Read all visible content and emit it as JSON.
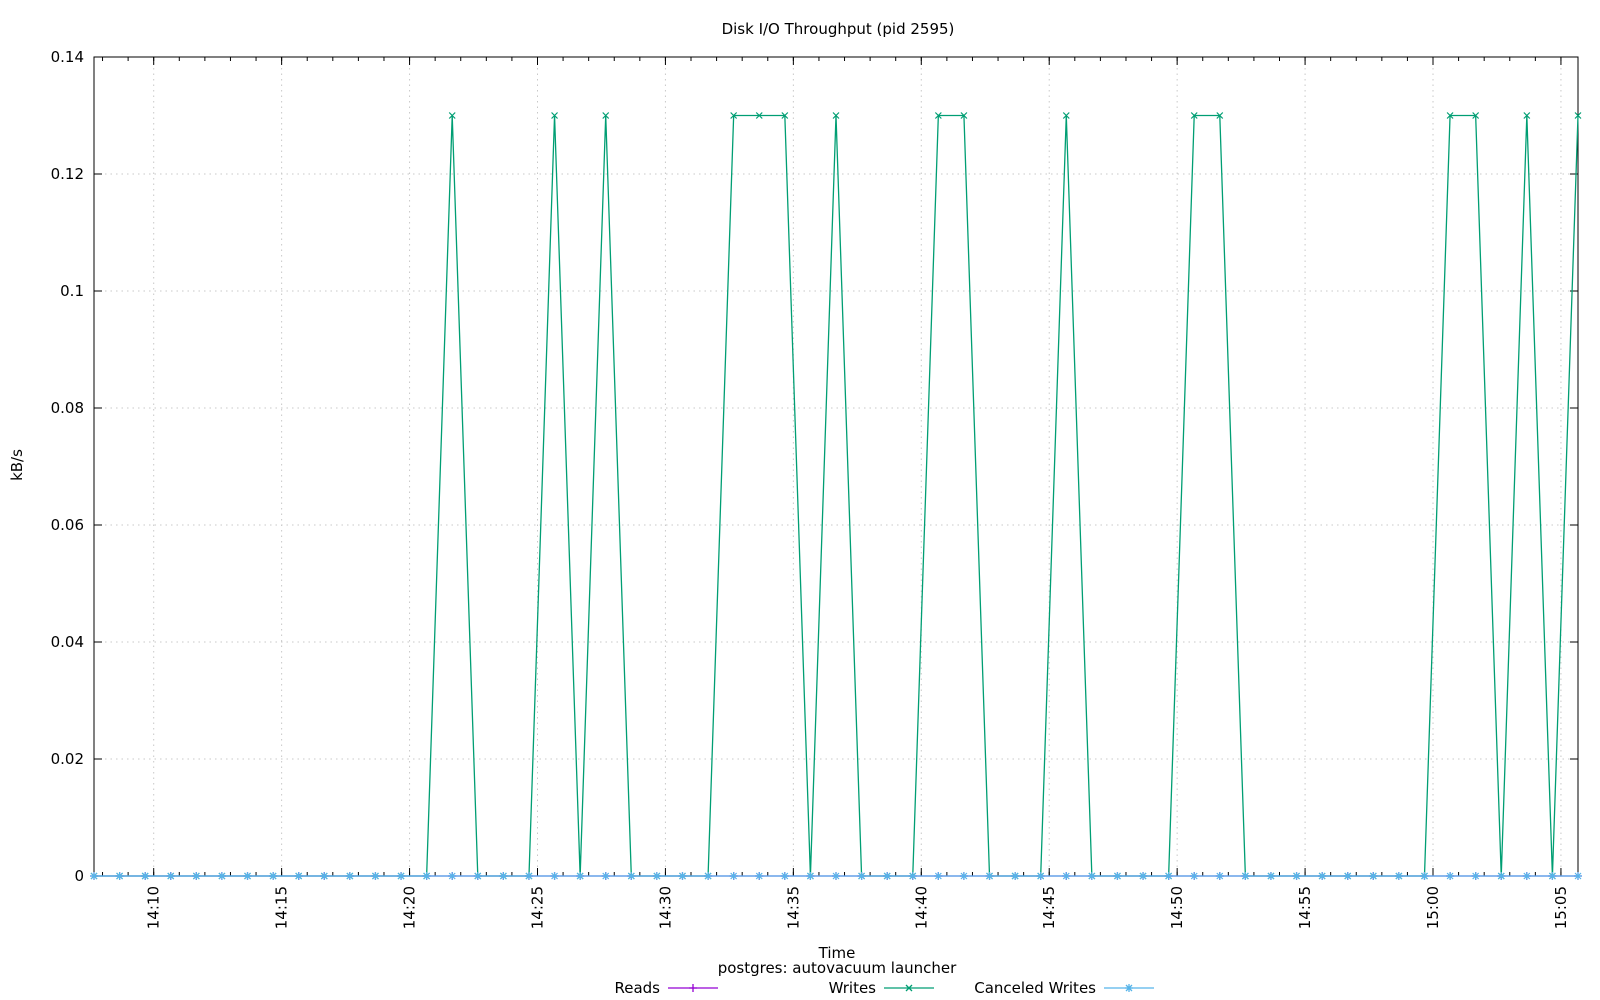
{
  "chart_data": {
    "type": "line",
    "title": "Disk I/O Throughput (pid 2595)",
    "xlabel": "Time",
    "ylabel": "kB/s",
    "subtitle": "postgres: autovacuum launcher",
    "x_range": [
      "14:07:40",
      "15:05:40"
    ],
    "ylim": [
      0,
      0.14
    ],
    "y_ticks": [
      "0",
      "0.02",
      "0.04",
      "0.06",
      "0.08",
      "0.1",
      "0.12",
      "0.14"
    ],
    "x_ticks": [
      "14:10",
      "14:15",
      "14:20",
      "14:25",
      "14:30",
      "14:35",
      "14:40",
      "14:45",
      "14:50",
      "14:55",
      "15:00",
      "15:05"
    ],
    "grid": true,
    "legend_position": "bottom",
    "x": [
      "14:07:40",
      "14:08:40",
      "14:09:40",
      "14:10:40",
      "14:11:40",
      "14:12:40",
      "14:13:40",
      "14:14:40",
      "14:15:40",
      "14:16:40",
      "14:17:40",
      "14:18:40",
      "14:19:40",
      "14:20:40",
      "14:21:40",
      "14:22:40",
      "14:23:40",
      "14:24:40",
      "14:25:40",
      "14:26:40",
      "14:27:40",
      "14:28:40",
      "14:29:40",
      "14:30:40",
      "14:31:40",
      "14:32:40",
      "14:33:40",
      "14:34:40",
      "14:35:40",
      "14:36:40",
      "14:37:40",
      "14:38:40",
      "14:39:40",
      "14:40:40",
      "14:41:40",
      "14:42:40",
      "14:43:40",
      "14:44:40",
      "14:45:40",
      "14:46:40",
      "14:47:40",
      "14:48:40",
      "14:49:40",
      "14:50:40",
      "14:51:40",
      "14:52:40",
      "14:53:40",
      "14:54:40",
      "14:55:40",
      "14:56:40",
      "14:57:40",
      "14:58:40",
      "14:59:40",
      "15:00:40",
      "15:01:40",
      "15:02:40",
      "15:03:40",
      "15:04:40",
      "15:05:40"
    ],
    "series": [
      {
        "name": "Reads",
        "color": "#9400d3",
        "marker": "plus",
        "values": [
          0,
          0,
          0,
          0,
          0,
          0,
          0,
          0,
          0,
          0,
          0,
          0,
          0,
          0,
          0,
          0,
          0,
          0,
          0,
          0,
          0,
          0,
          0,
          0,
          0,
          0,
          0,
          0,
          0,
          0,
          0,
          0,
          0,
          0,
          0,
          0,
          0,
          0,
          0,
          0,
          0,
          0,
          0,
          0,
          0,
          0,
          0,
          0,
          0,
          0,
          0,
          0,
          0,
          0,
          0,
          0,
          0,
          0,
          0
        ]
      },
      {
        "name": "Writes",
        "color": "#009e73",
        "marker": "cross",
        "values": [
          0,
          0,
          0,
          0,
          0,
          0,
          0,
          0,
          0,
          0,
          0,
          0,
          0,
          0,
          0.13,
          0,
          0,
          0,
          0.13,
          0,
          0.13,
          0,
          0,
          0,
          0,
          0.13,
          0.13,
          0.13,
          0,
          0.13,
          0,
          0,
          0,
          0.13,
          0.13,
          0,
          0,
          0,
          0.13,
          0,
          0,
          0,
          0,
          0.13,
          0.13,
          0,
          0,
          0,
          0,
          0,
          0,
          0,
          0,
          0.13,
          0.13,
          0,
          0.13,
          0,
          0.13
        ]
      },
      {
        "name": "Canceled Writes",
        "color": "#56b4e9",
        "marker": "star",
        "values": [
          0,
          0,
          0,
          0,
          0,
          0,
          0,
          0,
          0,
          0,
          0,
          0,
          0,
          0,
          0,
          0,
          0,
          0,
          0,
          0,
          0,
          0,
          0,
          0,
          0,
          0,
          0,
          0,
          0,
          0,
          0,
          0,
          0,
          0,
          0,
          0,
          0,
          0,
          0,
          0,
          0,
          0,
          0,
          0,
          0,
          0,
          0,
          0,
          0,
          0,
          0,
          0,
          0,
          0,
          0,
          0,
          0,
          0,
          0
        ]
      }
    ]
  }
}
